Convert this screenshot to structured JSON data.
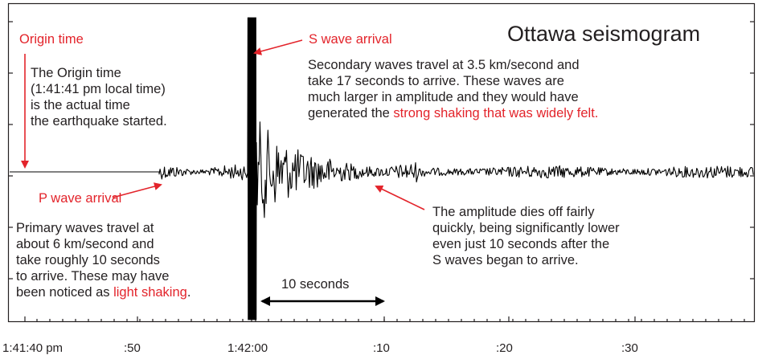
{
  "title": "Ottawa seismogram",
  "labels": {
    "origin_time": "Origin time",
    "s_wave_arrival": "S wave arrival",
    "p_wave_arrival": "P wave arrival",
    "ten_seconds": "10 seconds"
  },
  "origin_note": [
    "The Origin time",
    "(1:41:41 pm local time)",
    "is the actual time",
    "the earthquake started."
  ],
  "s_wave_note": {
    "lines": [
      "Secondary waves travel at 3.5 km/second and",
      "take 17 seconds to arrive. These waves are",
      "much larger in amplitude and they would have"
    ],
    "last_line_prefix": "generated the ",
    "last_line_highlight": "strong shaking that was widely felt."
  },
  "p_wave_note": {
    "lines": [
      "Primary waves travel at",
      "about 6 km/second and",
      "take roughly 10 seconds",
      "to arrive. These may have"
    ],
    "last_line_prefix": "been noticed as ",
    "last_line_highlight": "light shaking",
    "last_line_suffix": "."
  },
  "amplitude_note": [
    "The amplitude dies off fairly",
    "quickly, being significantly lower",
    "even just 10 seconds after the",
    "S waves began to arrive."
  ],
  "time_axis": [
    "1:41:40 pm",
    ":50",
    "1:42:00",
    ":10",
    ":20",
    ":30"
  ],
  "colors": {
    "accent": "#e3242b",
    "ink": "#231f20"
  }
}
